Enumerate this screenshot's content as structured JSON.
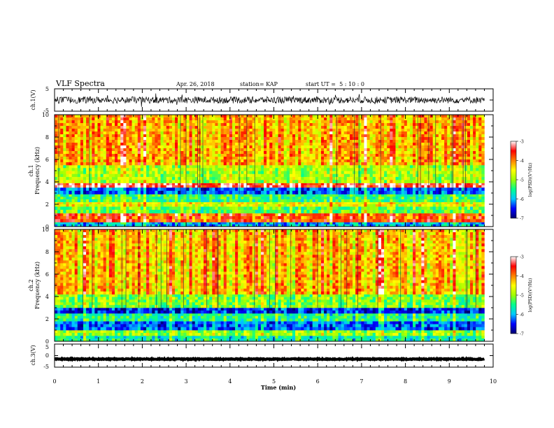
{
  "header": {
    "title": "VLF Spectra",
    "date": "Apr. 26, 2018",
    "station": "station= KAP",
    "start": "start UT =  5 : 10 : 0"
  },
  "chart_data": [
    {
      "type": "line",
      "name": "ch1-waveform",
      "ylabel": "ch.1(V)",
      "ylim": [
        -5,
        5
      ],
      "yticks": [
        "5",
        "-5"
      ],
      "xlim": [
        0,
        10
      ],
      "xlabel": "",
      "data_extent_min": 9.8,
      "signal": {
        "mean_v": 0.0,
        "typical_amplitude_v": 1.5
      }
    },
    {
      "type": "heatmap",
      "name": "ch1-spectrogram",
      "ylabel": "ch.1\nFrequency (kHz)",
      "ylim": [
        0,
        10
      ],
      "yticks": [
        "0",
        "2",
        "4",
        "6",
        "8",
        "10"
      ],
      "xlim": [
        0,
        10
      ],
      "data_extent_min": 9.8,
      "colorbar": {
        "label": "log(PSD)(V²/Hz)",
        "range": [
          -7,
          -3
        ],
        "ticks": [
          "-3",
          "-4",
          "-5",
          "-6",
          "-7"
        ],
        "colors": [
          "#000070",
          "#0000ff",
          "#00c8ff",
          "#00ff90",
          "#a0ff00",
          "#ffff00",
          "#ff8000",
          "#ff0000",
          "#ffffff"
        ]
      },
      "bands_khz": [
        {
          "range": [
            0,
            0.4
          ],
          "level": -6.0
        },
        {
          "range": [
            0.4,
            1.2
          ],
          "level": -3.8
        },
        {
          "range": [
            1.2,
            1.8
          ],
          "level": -5.2
        },
        {
          "range": [
            1.8,
            2.2
          ],
          "level": -4.6
        },
        {
          "range": [
            2.2,
            2.9
          ],
          "level": -5.4
        },
        {
          "range": [
            2.9,
            3.5
          ],
          "level": -6.3
        },
        {
          "range": [
            3.5,
            3.9
          ],
          "level": -3.4
        },
        {
          "range": [
            3.9,
            5.5
          ],
          "level": -4.9
        },
        {
          "range": [
            5.5,
            10
          ],
          "level": -4.2
        }
      ]
    },
    {
      "type": "heatmap",
      "name": "ch2-spectrogram",
      "ylabel": "ch.2\nFrequency (kHz)",
      "ylim": [
        0,
        10
      ],
      "yticks": [
        "0",
        "2",
        "4",
        "6",
        "8",
        "10"
      ],
      "xlim": [
        0,
        10
      ],
      "data_extent_min": 9.8,
      "colorbar": {
        "label": "log(PSD)(V²/Hz)",
        "range": [
          -7,
          -3
        ],
        "ticks": [
          "-3",
          "-4",
          "-5",
          "-6",
          "-7"
        ],
        "colors": [
          "#000070",
          "#0000ff",
          "#00c8ff",
          "#00ff90",
          "#a0ff00",
          "#ffff00",
          "#ff8000",
          "#ff0000",
          "#ffffff"
        ]
      },
      "bands_khz": [
        {
          "range": [
            0,
            0.5
          ],
          "level": -5.6
        },
        {
          "range": [
            0.5,
            1.0
          ],
          "level": -5.0
        },
        {
          "range": [
            1.0,
            1.8
          ],
          "level": -6.3
        },
        {
          "range": [
            1.8,
            2.5
          ],
          "level": -5.5
        },
        {
          "range": [
            2.5,
            3.0
          ],
          "level": -6.5
        },
        {
          "range": [
            3.0,
            4.2
          ],
          "level": -5.1
        },
        {
          "range": [
            4.2,
            10
          ],
          "level": -4.3
        }
      ]
    },
    {
      "type": "line",
      "name": "ch3-waveform",
      "ylabel": "ch.3(V)",
      "ylim": [
        -5,
        5
      ],
      "yticks": [
        "5",
        "0",
        "-5"
      ],
      "xlim": [
        0,
        10
      ],
      "xlabel": "Time (min)",
      "xticks": [
        "0",
        "1",
        "2",
        "3",
        "4",
        "5",
        "6",
        "7",
        "8",
        "9",
        "10"
      ],
      "data_extent_min": 9.8,
      "signal": {
        "mean_v": -1.5,
        "typical_amplitude_v": 0.2
      }
    }
  ]
}
